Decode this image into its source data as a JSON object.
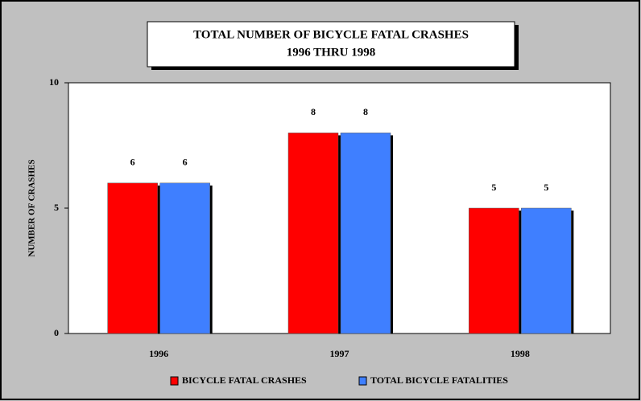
{
  "chart_data": {
    "type": "bar",
    "title": "TOTAL NUMBER OF BICYCLE FATAL CRASHES",
    "subtitle": "1996 THRU 1998",
    "y_label": "NUMBER OF CRASHES",
    "categories": [
      "1996",
      "1997",
      "1998"
    ],
    "series": [
      {
        "name": "BICYCLE FATAL CRASHES",
        "color": "#ff0000",
        "values": [
          6,
          8,
          5
        ]
      },
      {
        "name": "TOTAL BICYCLE FATALITIES",
        "color": "#3f7fff",
        "values": [
          6,
          8,
          5
        ]
      }
    ],
    "ylim": [
      0,
      10
    ],
    "yticks": [
      0,
      5,
      10
    ],
    "grid": false,
    "legend": "bottom"
  }
}
